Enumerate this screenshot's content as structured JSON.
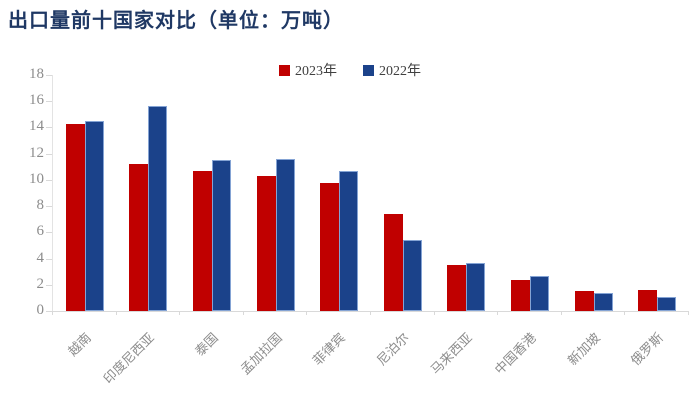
{
  "title": "出口量前十国家对比（单位：万吨）",
  "colors": {
    "series_2023": "#C00000",
    "series_2022": "#1B428A",
    "title_text": "#1F3864",
    "axis_text": "#8C8C8C",
    "axis_line": "#D9D9D9"
  },
  "legend": {
    "items": [
      {
        "label": "2023年",
        "color_key": "series_2023"
      },
      {
        "label": "2022年",
        "color_key": "series_2022"
      }
    ]
  },
  "chart_data": {
    "type": "bar",
    "title": "出口量前十国家对比（单位：万吨）",
    "categories": [
      "越南",
      "印度尼西亚",
      "泰国",
      "孟加拉国",
      "菲律宾",
      "尼泊尔",
      "马来西亚",
      "中国香港",
      "新加坡",
      "俄罗斯"
    ],
    "series": [
      {
        "name": "2023年",
        "color_key": "series_2023",
        "values": [
          14.3,
          11.2,
          10.7,
          10.3,
          9.8,
          7.4,
          3.5,
          2.4,
          1.5,
          1.6
        ]
      },
      {
        "name": "2022年",
        "color_key": "series_2022",
        "values": [
          14.5,
          15.6,
          11.5,
          11.6,
          10.7,
          5.4,
          3.7,
          2.7,
          1.4,
          1.1
        ]
      }
    ],
    "xlabel": "",
    "ylabel": "",
    "ylim": [
      0,
      18
    ],
    "ytick_step": 2,
    "grid": false,
    "legend_position": "top-center"
  }
}
